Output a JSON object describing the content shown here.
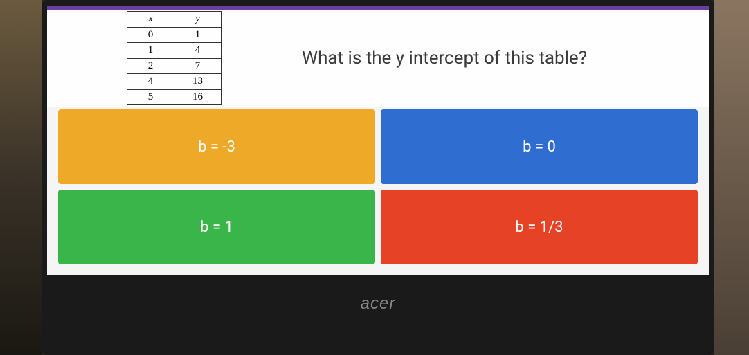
{
  "table": {
    "headers": {
      "x": "x",
      "y": "y"
    },
    "rows": [
      {
        "x": "0",
        "y": "1"
      },
      {
        "x": "1",
        "y": "4"
      },
      {
        "x": "2",
        "y": "7"
      },
      {
        "x": "4",
        "y": "13"
      },
      {
        "x": "5",
        "y": "16"
      }
    ]
  },
  "question": "What is the y intercept of this table?",
  "answers": {
    "a": {
      "label": "b = -3",
      "color": "#efa929"
    },
    "b": {
      "label": "b = 0",
      "color": "#2f6dd0"
    },
    "c": {
      "label": "b = 1",
      "color": "#3ab54a"
    },
    "d": {
      "label": "b = 1/3",
      "color": "#e64226"
    }
  },
  "laptop_brand": "acer",
  "colors": {
    "top_bar": "#6b3fa0",
    "question_bg": "#fefefe",
    "screen_bg": "#f5f5f5",
    "text": "#3a3a3a"
  }
}
